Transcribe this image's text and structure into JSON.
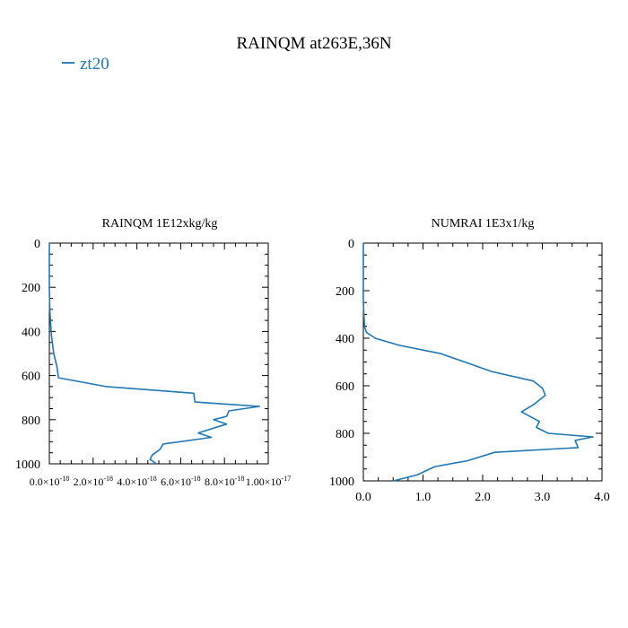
{
  "figure": {
    "title": "RAINQM at263E,36N",
    "line_color": "#1f77b4"
  },
  "chart_data": [
    {
      "type": "line",
      "title": "RAINQM  1E12xkg/kg",
      "xlabel": "",
      "ylabel": "",
      "xlim": [
        0,
        1e-17
      ],
      "ylim": [
        1000,
        0
      ],
      "y_inverted": true,
      "grid": false,
      "legend": {
        "placement": "top-left",
        "entries": [
          "zt20"
        ]
      },
      "xticks": [
        0,
        2e-18,
        4e-18,
        6e-18,
        8e-18,
        1e-17
      ],
      "xtick_labels": [
        {
          "base": "0.0×10",
          "exp": "-18"
        },
        {
          "base": "2.0×10",
          "exp": "-18"
        },
        {
          "base": "4.0×10",
          "exp": "-18"
        },
        {
          "base": "6.0×10",
          "exp": "-18"
        },
        {
          "base": "8.0×10",
          "exp": "-18"
        },
        {
          "base": "1.00×10",
          "exp": "-17"
        }
      ],
      "yticks": [
        0,
        200,
        400,
        600,
        800,
        1000
      ],
      "ytick_labels": [
        "0",
        "200",
        "400",
        "600",
        "800",
        "1000"
      ],
      "series": [
        {
          "name": "zt20",
          "x": [
            0,
            0,
            2e-20,
            5e-20,
            1e-19,
            2e-19,
            3.5e-19,
            4.2e-19,
            2.6e-18,
            6.6e-18,
            6.65e-18,
            9.6e-18,
            8.2e-18,
            8.1e-18,
            7.5e-18,
            8.1e-18,
            6.8e-18,
            7.4e-18,
            5.2e-18,
            5.05e-18,
            4.7e-18,
            4.6e-18,
            4.9e-18
          ],
          "y": [
            0,
            200,
            300,
            350,
            420,
            500,
            560,
            610,
            650,
            680,
            720,
            740,
            760,
            785,
            800,
            820,
            860,
            880,
            910,
            935,
            960,
            980,
            1000
          ]
        }
      ]
    },
    {
      "type": "line",
      "title": "NUMRAI  1E3x1/kg",
      "xlabel": "",
      "ylabel": "",
      "xlim": [
        0,
        4.0
      ],
      "ylim": [
        1000,
        0
      ],
      "y_inverted": true,
      "grid": false,
      "xticks": [
        0,
        1,
        2,
        3,
        4
      ],
      "xtick_labels": [
        "0.0",
        "1.0",
        "2.0",
        "3.0",
        "4.0"
      ],
      "yticks": [
        0,
        200,
        400,
        600,
        800,
        1000
      ],
      "ytick_labels": [
        "0",
        "200",
        "400",
        "600",
        "800",
        "1000"
      ],
      "series": [
        {
          "name": "zt20",
          "x": [
            0,
            0,
            0.02,
            0.05,
            0.2,
            0.6,
            1.3,
            1.7,
            2.15,
            2.85,
            3.0,
            3.05,
            2.85,
            2.65,
            2.95,
            2.9,
            3.1,
            3.85,
            3.55,
            3.6,
            2.2,
            1.75,
            1.2,
            0.9,
            0.5
          ],
          "y": [
            0,
            250,
            350,
            375,
            400,
            430,
            465,
            500,
            540,
            580,
            610,
            640,
            680,
            710,
            750,
            775,
            800,
            815,
            830,
            860,
            880,
            915,
            940,
            975,
            1000
          ]
        }
      ]
    }
  ]
}
